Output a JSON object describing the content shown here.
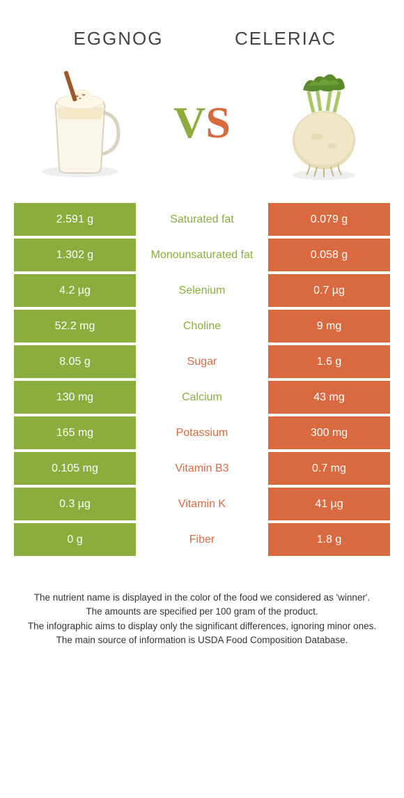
{
  "header": {
    "left_title": "EGGNOG",
    "right_title": "CELERIAC",
    "vs_v": "V",
    "vs_s": "S"
  },
  "colors": {
    "left": "#8aad3e",
    "right": "#d96a3f",
    "background": "#ffffff",
    "text": "#333333"
  },
  "rows": [
    {
      "left": "2.591 g",
      "label": "Saturated fat",
      "right": "0.079 g",
      "winner": "left"
    },
    {
      "left": "1.302 g",
      "label": "Monounsaturated fat",
      "right": "0.058 g",
      "winner": "left"
    },
    {
      "left": "4.2 µg",
      "label": "Selenium",
      "right": "0.7 µg",
      "winner": "left"
    },
    {
      "left": "52.2 mg",
      "label": "Choline",
      "right": "9 mg",
      "winner": "left"
    },
    {
      "left": "8.05 g",
      "label": "Sugar",
      "right": "1.6 g",
      "winner": "right"
    },
    {
      "left": "130 mg",
      "label": "Calcium",
      "right": "43 mg",
      "winner": "left"
    },
    {
      "left": "165 mg",
      "label": "Potassium",
      "right": "300 mg",
      "winner": "right"
    },
    {
      "left": "0.105 mg",
      "label": "Vitamin B3",
      "right": "0.7 mg",
      "winner": "right"
    },
    {
      "left": "0.3 µg",
      "label": "Vitamin K",
      "right": "41 µg",
      "winner": "right"
    },
    {
      "left": "0 g",
      "label": "Fiber",
      "right": "1.8 g",
      "winner": "right"
    }
  ],
  "footer": {
    "line1": "The nutrient name is displayed in the color of the food we considered as 'winner'.",
    "line2": "The amounts are specified per 100 gram of the product.",
    "line3": "The infographic aims to display only the significant differences, ignoring minor ones.",
    "line4": "The main source of information is USDA Food Composition Database."
  }
}
